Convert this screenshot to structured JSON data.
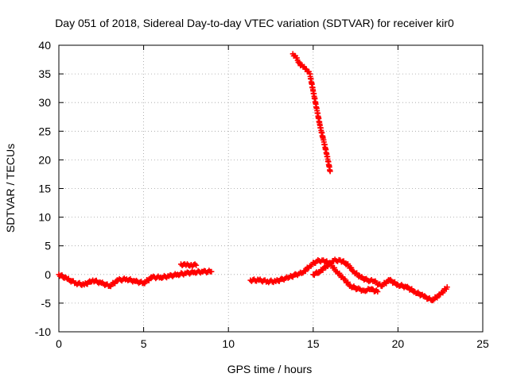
{
  "chart_data": {
    "type": "scatter",
    "title": "Day 051 of 2018, Sidereal Day-to-day VTEC variation (SDTVAR) for receiver kir0",
    "xlabel": "GPS time / hours",
    "ylabel": "SDTVAR / TECUs",
    "xlim": [
      0,
      25
    ],
    "ylim": [
      -10,
      40
    ],
    "xticks": [
      0,
      5,
      10,
      15,
      20,
      25
    ],
    "yticks": [
      -10,
      -5,
      0,
      5,
      10,
      15,
      20,
      25,
      30,
      35,
      40
    ],
    "xtick_labels": [
      "0",
      "5",
      "10",
      "15",
      "20",
      "25"
    ],
    "ytick_labels": [
      "-10",
      "-5",
      "0",
      "5",
      "10",
      "15",
      "20",
      "25",
      "30",
      "35",
      "40"
    ],
    "grid": true,
    "legend": "none",
    "marker": "+",
    "series": [
      {
        "name": "track-a",
        "color": "#ff0000",
        "x": [
          0.0,
          0.5,
          1.0,
          1.5,
          2.0,
          2.5,
          3.0,
          3.5,
          4.0,
          4.5,
          5.0,
          5.5,
          6.0,
          6.5,
          7.0,
          7.5,
          8.0,
          8.5,
          9.0
        ],
        "y": [
          0.0,
          -0.8,
          -1.5,
          -1.8,
          -1.0,
          -1.5,
          -2.0,
          -1.0,
          -0.8,
          -1.2,
          -1.5,
          -0.5,
          -0.5,
          -0.3,
          0.0,
          0.2,
          0.4,
          0.5,
          0.5
        ]
      },
      {
        "name": "track-b",
        "color": "#ff0000",
        "x": [
          7.2,
          7.5,
          7.8,
          8.1
        ],
        "y": [
          1.8,
          1.6,
          1.7,
          1.6
        ]
      },
      {
        "name": "track-c",
        "color": "#ff0000",
        "x": [
          11.3,
          11.8,
          12.3,
          12.8,
          13.2,
          13.6,
          14.0,
          14.4,
          14.8,
          15.2,
          15.6,
          16.0,
          16.4,
          16.8,
          17.2,
          17.6,
          18.0,
          18.4,
          18.8
        ],
        "y": [
          -1.0,
          -1.0,
          -1.2,
          -1.2,
          -0.8,
          -0.5,
          0.0,
          0.3,
          1.5,
          2.3,
          2.5,
          1.8,
          0.5,
          -0.8,
          -2.0,
          -2.5,
          -2.8,
          -2.6,
          -3.0
        ]
      },
      {
        "name": "track-d",
        "color": "#ff0000",
        "x": [
          15.0,
          15.4,
          15.8,
          16.2,
          16.6,
          17.0,
          17.4,
          17.8,
          18.2,
          18.6,
          19.0,
          19.5,
          20.0,
          20.5,
          21.0,
          21.5,
          22.0,
          22.5,
          22.9
        ],
        "y": [
          0.0,
          0.5,
          1.5,
          2.4,
          2.5,
          1.8,
          0.5,
          -0.5,
          -1.0,
          -1.2,
          -2.0,
          -1.0,
          -1.8,
          -2.2,
          -3.0,
          -3.8,
          -4.5,
          -3.5,
          -2.2
        ]
      },
      {
        "name": "track-e",
        "color": "#ff0000",
        "x": [
          13.8,
          14.0,
          14.2,
          14.4,
          14.6,
          14.8,
          15.0,
          15.2,
          15.4,
          15.6,
          15.8,
          16.0
        ],
        "y": [
          38.5,
          37.8,
          36.8,
          36.2,
          35.8,
          35.0,
          32.0,
          29.0,
          26.0,
          23.5,
          21.0,
          18.0
        ]
      }
    ]
  }
}
